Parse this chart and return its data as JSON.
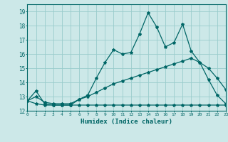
{
  "xlabel": "Humidex (Indice chaleur)",
  "bg_color": "#cce8e8",
  "grid_color": "#99cccc",
  "line_color": "#006666",
  "xlim": [
    0,
    23
  ],
  "ylim": [
    12,
    19.5
  ],
  "xticks": [
    0,
    1,
    2,
    3,
    4,
    5,
    6,
    7,
    8,
    9,
    10,
    11,
    12,
    13,
    14,
    15,
    16,
    17,
    18,
    19,
    20,
    21,
    22,
    23
  ],
  "yticks": [
    12,
    13,
    14,
    15,
    16,
    17,
    18,
    19
  ],
  "line1_x": [
    0,
    1,
    2,
    3,
    4,
    5,
    6,
    7,
    8,
    9,
    10,
    11,
    12,
    13,
    14,
    15,
    16,
    17,
    18,
    19,
    20,
    21,
    22,
    23
  ],
  "line1_y": [
    12.7,
    13.4,
    12.5,
    12.4,
    12.4,
    12.4,
    12.8,
    13.1,
    14.3,
    15.4,
    16.3,
    16.0,
    16.1,
    17.4,
    18.9,
    17.9,
    16.5,
    16.8,
    18.1,
    16.2,
    15.4,
    14.2,
    13.1,
    12.5
  ],
  "line2_x": [
    0,
    1,
    2,
    3,
    4,
    5,
    6,
    7,
    8,
    9,
    10,
    11,
    12,
    13,
    14,
    15,
    16,
    17,
    18,
    19,
    20,
    21,
    22,
    23
  ],
  "line2_y": [
    12.7,
    13.0,
    12.6,
    12.5,
    12.5,
    12.5,
    12.8,
    13.0,
    13.3,
    13.6,
    13.9,
    14.1,
    14.3,
    14.5,
    14.7,
    14.9,
    15.1,
    15.3,
    15.5,
    15.7,
    15.4,
    15.0,
    14.3,
    13.5
  ],
  "line3_x": [
    0,
    1,
    2,
    3,
    4,
    5,
    6,
    7,
    8,
    9,
    10,
    11,
    12,
    13,
    14,
    15,
    16,
    17,
    18,
    19,
    20,
    21,
    22,
    23
  ],
  "line3_y": [
    12.7,
    12.5,
    12.4,
    12.4,
    12.4,
    12.4,
    12.4,
    12.4,
    12.4,
    12.4,
    12.4,
    12.4,
    12.4,
    12.4,
    12.4,
    12.4,
    12.4,
    12.4,
    12.4,
    12.4,
    12.4,
    12.4,
    12.4,
    12.4
  ]
}
